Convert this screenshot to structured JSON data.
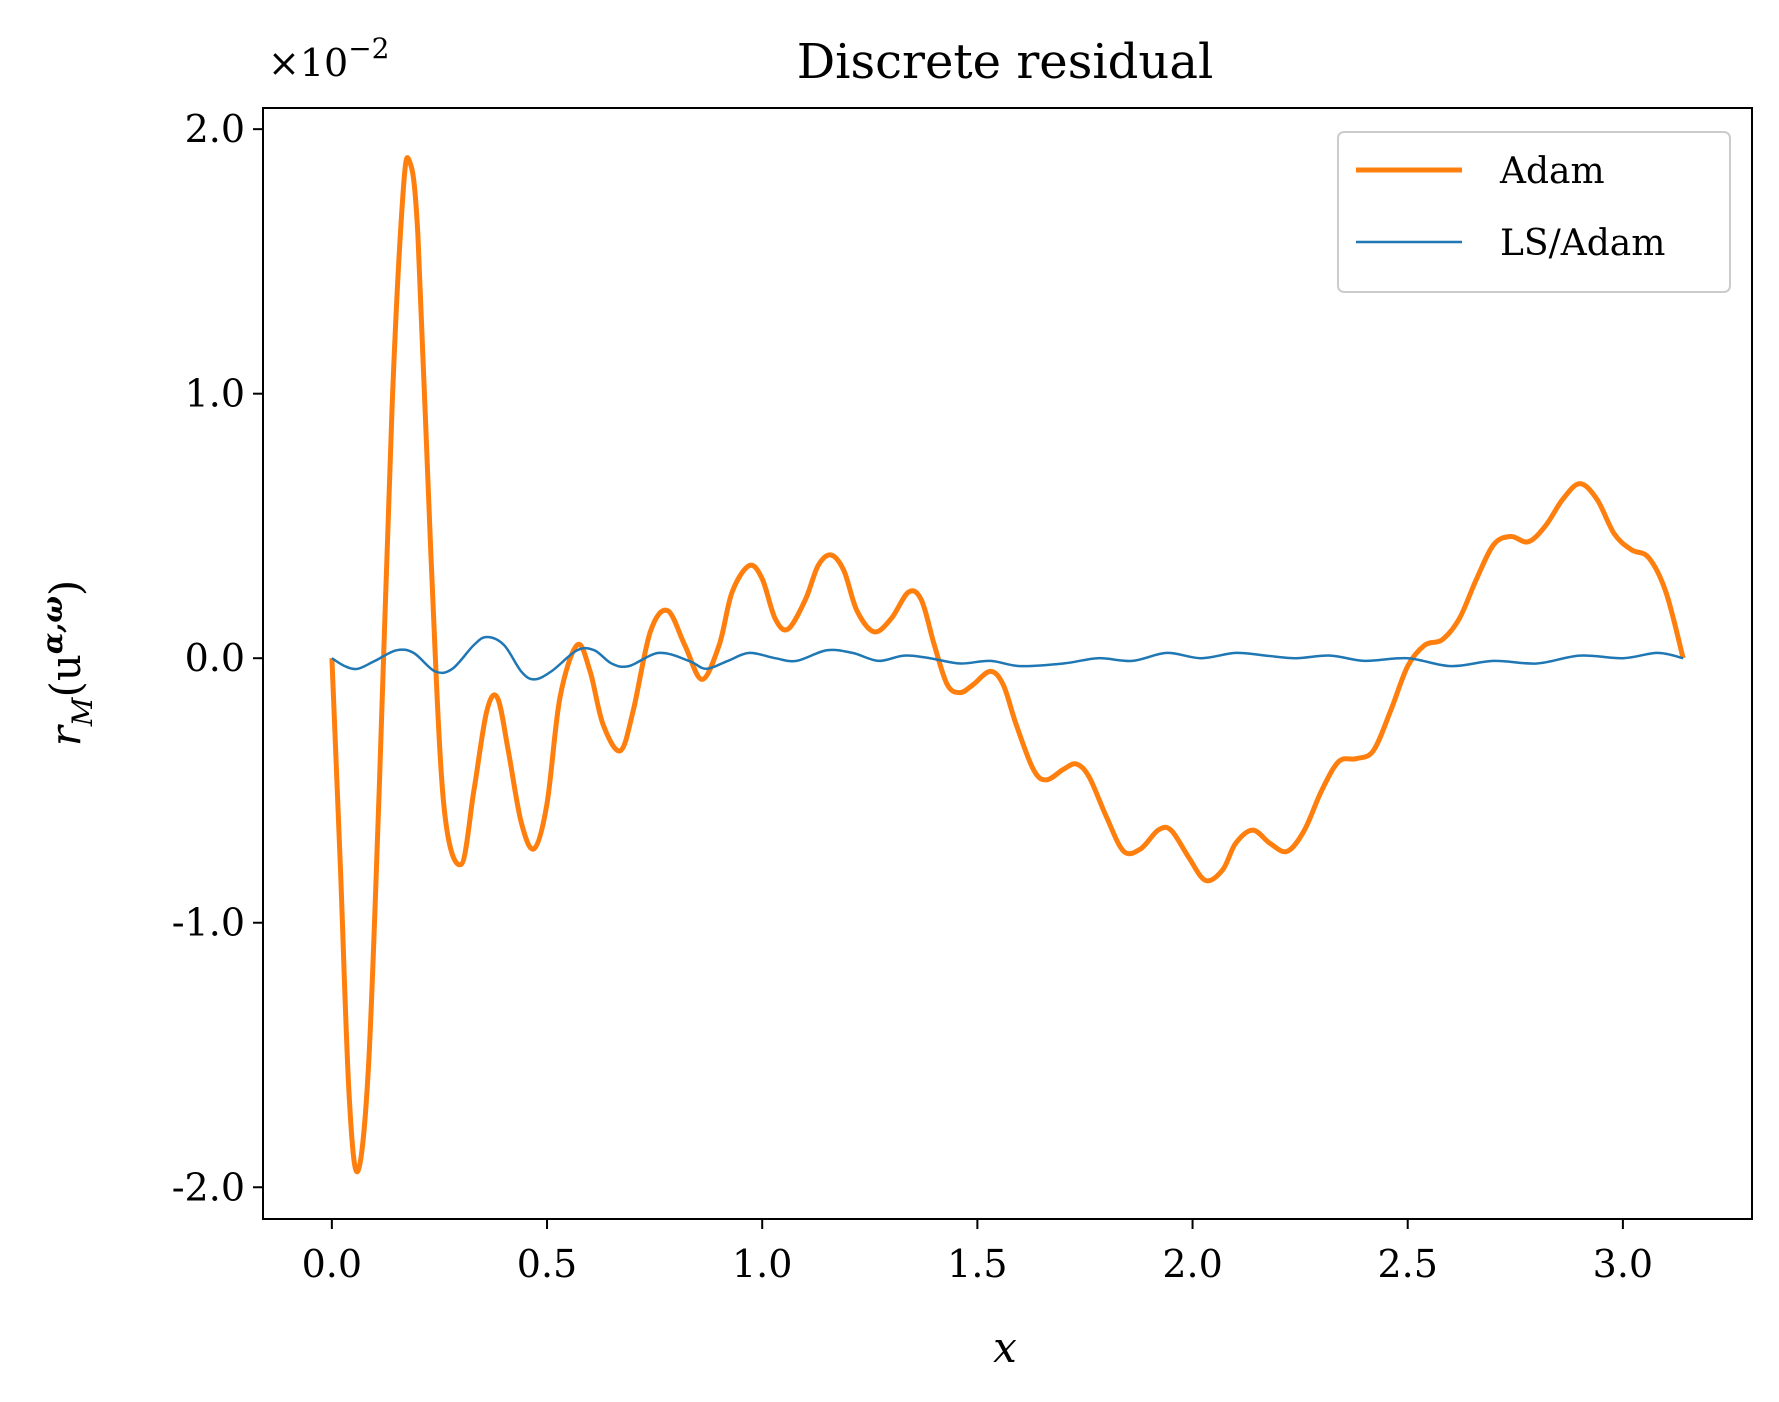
{
  "chart_data": {
    "type": "line",
    "title": "Discrete residual",
    "xlabel": "x",
    "ylabel": "r_M(u^{α,ω})",
    "ylabel_parts": {
      "base": "r",
      "sub": "M",
      "open": "(u",
      "sup": "α,ω",
      "close": ")"
    },
    "offset_text": {
      "base": "×10",
      "exp": "−2"
    },
    "xlim": [
      -0.16,
      3.3
    ],
    "ylim": [
      -2.12,
      2.08
    ],
    "xticks": [
      0.0,
      0.5,
      1.0,
      1.5,
      2.0,
      2.5,
      3.0
    ],
    "xtick_labels": [
      "0.0",
      "0.5",
      "1.0",
      "1.5",
      "2.0",
      "2.5",
      "3.0"
    ],
    "yticks": [
      -2.0,
      -1.0,
      0.0,
      1.0,
      2.0
    ],
    "ytick_labels": [
      "-2.0",
      "-1.0",
      "0.0",
      "1.0",
      "2.0"
    ],
    "grid": false,
    "legend_position": "top-right",
    "series": [
      {
        "name": "Adam",
        "color": "#ff7f0e",
        "points": [
          [
            0.0,
            0.0
          ],
          [
            0.02,
            -0.8
          ],
          [
            0.04,
            -1.65
          ],
          [
            0.06,
            -1.94
          ],
          [
            0.085,
            -1.55
          ],
          [
            0.11,
            -0.5
          ],
          [
            0.14,
            0.95
          ],
          [
            0.165,
            1.75
          ],
          [
            0.18,
            1.88
          ],
          [
            0.2,
            1.6
          ],
          [
            0.23,
            0.4
          ],
          [
            0.26,
            -0.55
          ],
          [
            0.3,
            -0.78
          ],
          [
            0.33,
            -0.5
          ],
          [
            0.36,
            -0.2
          ],
          [
            0.385,
            -0.15
          ],
          [
            0.41,
            -0.35
          ],
          [
            0.44,
            -0.62
          ],
          [
            0.47,
            -0.72
          ],
          [
            0.5,
            -0.55
          ],
          [
            0.53,
            -0.15
          ],
          [
            0.57,
            0.05
          ],
          [
            0.6,
            -0.05
          ],
          [
            0.63,
            -0.25
          ],
          [
            0.67,
            -0.35
          ],
          [
            0.7,
            -0.2
          ],
          [
            0.74,
            0.1
          ],
          [
            0.78,
            0.18
          ],
          [
            0.82,
            0.05
          ],
          [
            0.86,
            -0.08
          ],
          [
            0.9,
            0.05
          ],
          [
            0.93,
            0.25
          ],
          [
            0.97,
            0.35
          ],
          [
            1.0,
            0.3
          ],
          [
            1.03,
            0.15
          ],
          [
            1.06,
            0.11
          ],
          [
            1.1,
            0.22
          ],
          [
            1.13,
            0.35
          ],
          [
            1.16,
            0.39
          ],
          [
            1.19,
            0.33
          ],
          [
            1.22,
            0.18
          ],
          [
            1.26,
            0.1
          ],
          [
            1.3,
            0.15
          ],
          [
            1.34,
            0.25
          ],
          [
            1.37,
            0.22
          ],
          [
            1.4,
            0.05
          ],
          [
            1.43,
            -0.1
          ],
          [
            1.46,
            -0.13
          ],
          [
            1.49,
            -0.1
          ],
          [
            1.53,
            -0.05
          ],
          [
            1.56,
            -0.1
          ],
          [
            1.59,
            -0.25
          ],
          [
            1.63,
            -0.42
          ],
          [
            1.66,
            -0.46
          ],
          [
            1.7,
            -0.42
          ],
          [
            1.73,
            -0.4
          ],
          [
            1.76,
            -0.45
          ],
          [
            1.8,
            -0.6
          ],
          [
            1.84,
            -0.73
          ],
          [
            1.88,
            -0.72
          ],
          [
            1.92,
            -0.65
          ],
          [
            1.95,
            -0.65
          ],
          [
            1.99,
            -0.75
          ],
          [
            2.03,
            -0.84
          ],
          [
            2.07,
            -0.8
          ],
          [
            2.1,
            -0.7
          ],
          [
            2.14,
            -0.65
          ],
          [
            2.18,
            -0.7
          ],
          [
            2.22,
            -0.73
          ],
          [
            2.26,
            -0.65
          ],
          [
            2.3,
            -0.5
          ],
          [
            2.34,
            -0.39
          ],
          [
            2.38,
            -0.38
          ],
          [
            2.42,
            -0.35
          ],
          [
            2.46,
            -0.2
          ],
          [
            2.5,
            -0.03
          ],
          [
            2.54,
            0.05
          ],
          [
            2.58,
            0.07
          ],
          [
            2.62,
            0.15
          ],
          [
            2.66,
            0.3
          ],
          [
            2.7,
            0.43
          ],
          [
            2.74,
            0.46
          ],
          [
            2.78,
            0.44
          ],
          [
            2.82,
            0.5
          ],
          [
            2.86,
            0.6
          ],
          [
            2.9,
            0.66
          ],
          [
            2.94,
            0.6
          ],
          [
            2.98,
            0.47
          ],
          [
            3.02,
            0.41
          ],
          [
            3.06,
            0.38
          ],
          [
            3.1,
            0.25
          ],
          [
            3.14,
            0.0
          ]
        ]
      },
      {
        "name": "LS/Adam",
        "color": "#1f77b4",
        "points": [
          [
            0.0,
            0.0
          ],
          [
            0.03,
            -0.03
          ],
          [
            0.06,
            -0.04
          ],
          [
            0.1,
            -0.01
          ],
          [
            0.15,
            0.03
          ],
          [
            0.19,
            0.02
          ],
          [
            0.24,
            -0.05
          ],
          [
            0.28,
            -0.04
          ],
          [
            0.33,
            0.05
          ],
          [
            0.36,
            0.08
          ],
          [
            0.4,
            0.05
          ],
          [
            0.44,
            -0.05
          ],
          [
            0.47,
            -0.08
          ],
          [
            0.51,
            -0.05
          ],
          [
            0.57,
            0.03
          ],
          [
            0.61,
            0.03
          ],
          [
            0.65,
            -0.02
          ],
          [
            0.69,
            -0.03
          ],
          [
            0.76,
            0.02
          ],
          [
            0.83,
            -0.01
          ],
          [
            0.87,
            -0.04
          ],
          [
            0.92,
            -0.01
          ],
          [
            0.97,
            0.02
          ],
          [
            1.03,
            0.0
          ],
          [
            1.08,
            -0.01
          ],
          [
            1.15,
            0.03
          ],
          [
            1.21,
            0.02
          ],
          [
            1.27,
            -0.01
          ],
          [
            1.33,
            0.01
          ],
          [
            1.39,
            0.0
          ],
          [
            1.46,
            -0.02
          ],
          [
            1.53,
            -0.01
          ],
          [
            1.6,
            -0.03
          ],
          [
            1.7,
            -0.02
          ],
          [
            1.78,
            0.0
          ],
          [
            1.86,
            -0.01
          ],
          [
            1.94,
            0.02
          ],
          [
            2.02,
            0.0
          ],
          [
            2.1,
            0.02
          ],
          [
            2.17,
            0.01
          ],
          [
            2.24,
            0.0
          ],
          [
            2.32,
            0.01
          ],
          [
            2.4,
            -0.01
          ],
          [
            2.5,
            0.0
          ],
          [
            2.6,
            -0.03
          ],
          [
            2.7,
            -0.01
          ],
          [
            2.8,
            -0.02
          ],
          [
            2.9,
            0.01
          ],
          [
            3.0,
            0.0
          ],
          [
            3.08,
            0.02
          ],
          [
            3.14,
            0.0
          ]
        ]
      }
    ]
  }
}
